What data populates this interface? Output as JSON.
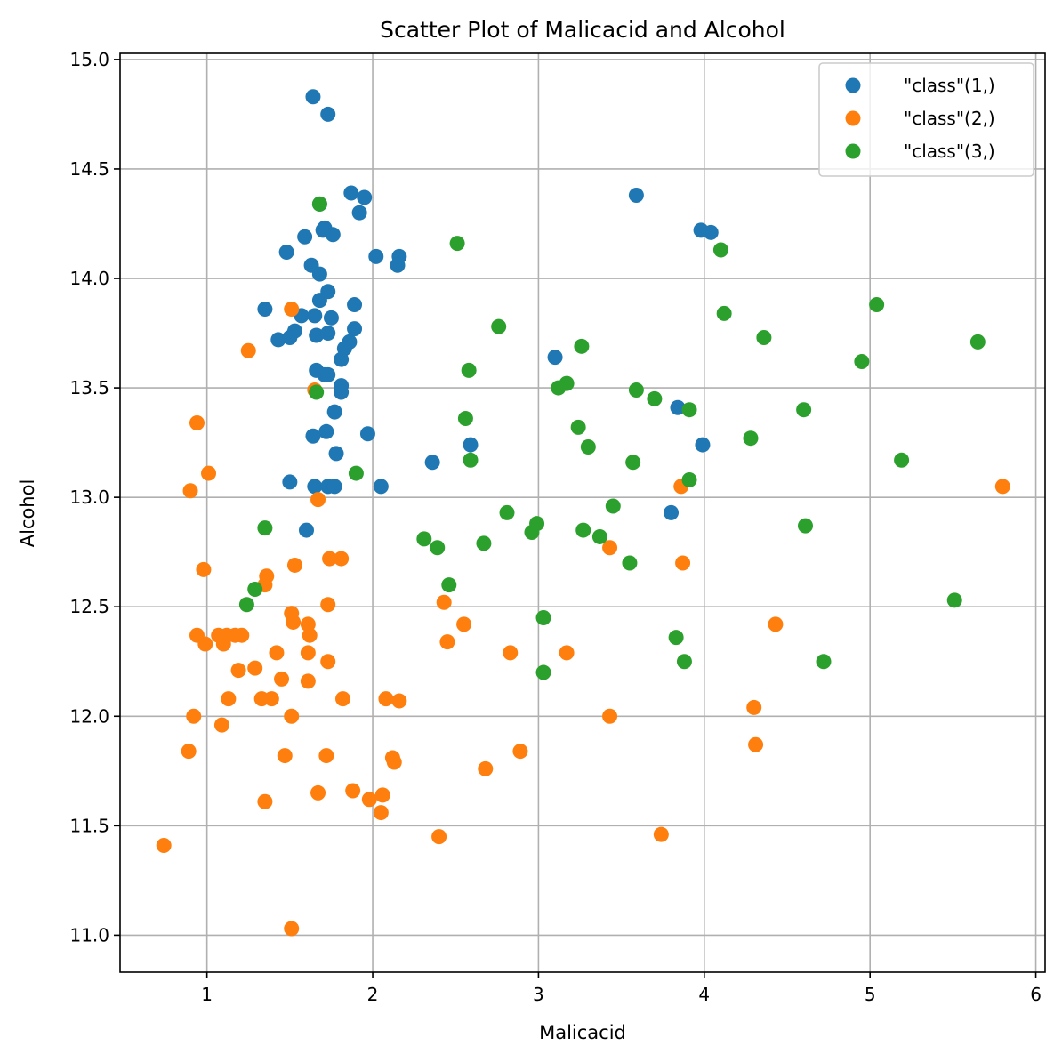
{
  "chart_data": {
    "type": "scatter",
    "title": "Scatter Plot of Malicacid and Alcohol",
    "xlabel": "Malicacid",
    "ylabel": "Alcohol",
    "xlim": [
      0.476,
      6.056
    ],
    "ylim": [
      10.831,
      15.028
    ],
    "xticks": [
      1,
      2,
      3,
      4,
      5,
      6
    ],
    "xtick_labels": [
      "1",
      "2",
      "3",
      "4",
      "5",
      "6"
    ],
    "yticks": [
      11.0,
      11.5,
      12.0,
      12.5,
      13.0,
      13.5,
      14.0,
      14.5,
      15.0
    ],
    "ytick_labels": [
      "11.0",
      "11.5",
      "12.0",
      "12.5",
      "13.0",
      "13.5",
      "14.0",
      "14.5",
      "15.0"
    ],
    "grid": true,
    "legend_position": "top-right",
    "series": [
      {
        "name": "\"class\"(1,)",
        "color": "#1f77b4",
        "points": [
          [
            1.64,
            14.83
          ],
          [
            1.73,
            14.75
          ],
          [
            1.87,
            14.39
          ],
          [
            1.95,
            14.37
          ],
          [
            1.68,
            14.34
          ],
          [
            1.92,
            14.3
          ],
          [
            1.71,
            14.23
          ],
          [
            1.7,
            14.22
          ],
          [
            1.59,
            14.19
          ],
          [
            1.76,
            14.2
          ],
          [
            1.48,
            14.12
          ],
          [
            2.02,
            14.1
          ],
          [
            2.16,
            14.1
          ],
          [
            2.15,
            14.06
          ],
          [
            1.63,
            14.06
          ],
          [
            1.68,
            14.02
          ],
          [
            1.73,
            13.94
          ],
          [
            1.68,
            13.9
          ],
          [
            1.89,
            13.88
          ],
          [
            1.35,
            13.86
          ],
          [
            1.57,
            13.83
          ],
          [
            1.65,
            13.83
          ],
          [
            1.75,
            13.82
          ],
          [
            1.89,
            13.77
          ],
          [
            1.53,
            13.76
          ],
          [
            1.66,
            13.74
          ],
          [
            1.73,
            13.75
          ],
          [
            1.43,
            13.72
          ],
          [
            1.5,
            13.73
          ],
          [
            1.86,
            13.71
          ],
          [
            1.83,
            13.68
          ],
          [
            1.81,
            13.63
          ],
          [
            1.66,
            13.58
          ],
          [
            1.71,
            13.56
          ],
          [
            1.73,
            13.56
          ],
          [
            1.81,
            13.51
          ],
          [
            1.81,
            13.48
          ],
          [
            1.77,
            13.39
          ],
          [
            1.72,
            13.3
          ],
          [
            1.97,
            13.29
          ],
          [
            1.64,
            13.28
          ],
          [
            1.78,
            13.2
          ],
          [
            1.5,
            13.07
          ],
          [
            1.65,
            13.05
          ],
          [
            1.73,
            13.05
          ],
          [
            1.77,
            13.05
          ],
          [
            2.05,
            13.05
          ],
          [
            1.6,
            12.85
          ],
          [
            2.36,
            13.16
          ],
          [
            2.59,
            13.24
          ],
          [
            3.1,
            13.64
          ],
          [
            3.59,
            14.38
          ],
          [
            3.98,
            14.22
          ],
          [
            4.04,
            14.21
          ],
          [
            3.84,
            13.41
          ],
          [
            3.99,
            13.24
          ],
          [
            3.8,
            12.93
          ]
        ]
      },
      {
        "name": "\"class\"(2,)",
        "color": "#ff7f0e",
        "points": [
          [
            0.74,
            11.41
          ],
          [
            0.9,
            13.03
          ],
          [
            0.94,
            13.34
          ],
          [
            1.01,
            13.11
          ],
          [
            0.98,
            12.67
          ],
          [
            0.94,
            12.37
          ],
          [
            0.99,
            12.33
          ],
          [
            1.07,
            12.37
          ],
          [
            1.1,
            12.33
          ],
          [
            1.12,
            12.37
          ],
          [
            1.17,
            12.37
          ],
          [
            1.21,
            12.37
          ],
          [
            0.92,
            12.0
          ],
          [
            0.89,
            11.84
          ],
          [
            1.09,
            11.96
          ],
          [
            1.13,
            12.08
          ],
          [
            1.19,
            12.21
          ],
          [
            1.29,
            12.22
          ],
          [
            1.25,
            13.67
          ],
          [
            1.51,
            13.86
          ],
          [
            1.65,
            13.49
          ],
          [
            1.67,
            12.99
          ],
          [
            1.33,
            12.08
          ],
          [
            1.39,
            12.08
          ],
          [
            1.35,
            11.61
          ],
          [
            1.35,
            12.6
          ],
          [
            1.36,
            12.64
          ],
          [
            1.42,
            12.29
          ],
          [
            1.45,
            12.17
          ],
          [
            1.47,
            11.82
          ],
          [
            1.51,
            12.0
          ],
          [
            1.51,
            12.47
          ],
          [
            1.52,
            12.43
          ],
          [
            1.53,
            12.69
          ],
          [
            1.61,
            12.42
          ],
          [
            1.62,
            12.37
          ],
          [
            1.61,
            12.29
          ],
          [
            1.61,
            12.16
          ],
          [
            1.51,
            11.03
          ],
          [
            1.67,
            11.65
          ],
          [
            1.72,
            11.82
          ],
          [
            1.73,
            12.25
          ],
          [
            1.73,
            12.51
          ],
          [
            1.74,
            12.72
          ],
          [
            1.81,
            12.72
          ],
          [
            1.82,
            12.08
          ],
          [
            1.88,
            11.66
          ],
          [
            1.98,
            11.62
          ],
          [
            2.05,
            11.56
          ],
          [
            2.06,
            11.64
          ],
          [
            2.08,
            12.08
          ],
          [
            2.12,
            11.81
          ],
          [
            2.13,
            11.79
          ],
          [
            2.16,
            12.07
          ],
          [
            2.4,
            11.45
          ],
          [
            2.43,
            12.52
          ],
          [
            2.45,
            12.34
          ],
          [
            2.55,
            12.42
          ],
          [
            2.68,
            11.76
          ],
          [
            2.83,
            12.29
          ],
          [
            2.89,
            11.84
          ],
          [
            3.17,
            12.29
          ],
          [
            3.43,
            12.77
          ],
          [
            3.43,
            12.0
          ],
          [
            3.74,
            11.46
          ],
          [
            3.86,
            13.05
          ],
          [
            3.87,
            12.7
          ],
          [
            4.3,
            12.04
          ],
          [
            4.31,
            11.87
          ],
          [
            4.43,
            12.42
          ],
          [
            5.8,
            13.05
          ]
        ]
      },
      {
        "name": "\"class\"(3,)",
        "color": "#2ca02c",
        "points": [
          [
            1.68,
            14.34
          ],
          [
            1.66,
            13.48
          ],
          [
            1.9,
            13.11
          ],
          [
            1.35,
            12.86
          ],
          [
            1.29,
            12.58
          ],
          [
            1.24,
            12.51
          ],
          [
            2.31,
            12.81
          ],
          [
            2.39,
            12.77
          ],
          [
            2.46,
            12.6
          ],
          [
            2.51,
            14.16
          ],
          [
            2.58,
            13.58
          ],
          [
            2.56,
            13.36
          ],
          [
            2.59,
            13.17
          ],
          [
            2.67,
            12.79
          ],
          [
            2.76,
            13.78
          ],
          [
            2.81,
            12.93
          ],
          [
            2.96,
            12.84
          ],
          [
            2.99,
            12.88
          ],
          [
            3.03,
            12.45
          ],
          [
            3.03,
            12.2
          ],
          [
            3.12,
            13.5
          ],
          [
            3.17,
            13.52
          ],
          [
            3.24,
            13.32
          ],
          [
            3.26,
            13.69
          ],
          [
            3.27,
            12.85
          ],
          [
            3.3,
            13.23
          ],
          [
            3.37,
            12.82
          ],
          [
            3.45,
            12.96
          ],
          [
            3.55,
            12.7
          ],
          [
            3.57,
            13.16
          ],
          [
            3.59,
            13.49
          ],
          [
            3.7,
            13.45
          ],
          [
            3.83,
            12.36
          ],
          [
            3.88,
            12.25
          ],
          [
            3.91,
            13.4
          ],
          [
            3.91,
            13.08
          ],
          [
            4.1,
            14.13
          ],
          [
            4.12,
            13.84
          ],
          [
            4.28,
            13.27
          ],
          [
            4.36,
            13.73
          ],
          [
            4.6,
            13.4
          ],
          [
            4.61,
            12.87
          ],
          [
            4.72,
            12.25
          ],
          [
            4.95,
            13.62
          ],
          [
            5.04,
            13.88
          ],
          [
            5.19,
            13.17
          ],
          [
            5.51,
            12.53
          ],
          [
            5.65,
            13.71
          ]
        ]
      }
    ]
  }
}
